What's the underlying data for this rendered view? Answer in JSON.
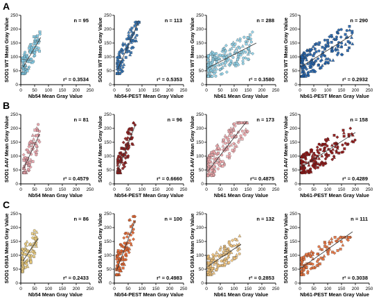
{
  "figure": {
    "rows": [
      {
        "letter": "A",
        "ylabel": "SOD1 WT Mean Gray Value",
        "panels": [
          {
            "xlabel": "Nb54 Mean Gray Value",
            "n_text": "n = 95",
            "r2_text": "r² = 0.3534"
          },
          {
            "xlabel": "Nb54-PEST Mean Gray Value",
            "n_text": "n = 113",
            "r2_text": "r² = 0.5353"
          },
          {
            "xlabel": "Nb61 Mean Gray Value",
            "n_text": "n = 288",
            "r2_text": "r² = 0.3580"
          },
          {
            "xlabel": "Nb61-PEST Mean Gray Value",
            "n_text": "n = 290",
            "r2_text": "r² = 0.2932"
          }
        ]
      },
      {
        "letter": "B",
        "ylabel": "SOD1 A4V Mean Gray Value",
        "panels": [
          {
            "xlabel": "Nb54 Mean Gray Value",
            "n_text": "n = 81",
            "r2_text": "r² = 0.4579"
          },
          {
            "xlabel": "Nb54-PEST Mean Gray Value",
            "n_text": "n = 96",
            "r2_text": "r² = 0.6660"
          },
          {
            "xlabel": "Nb61 Mean Gray Value",
            "n_text": "n = 173",
            "r2_text": "r²= 0.4875"
          },
          {
            "xlabel": "Nb61-PEST Mean Gray Value",
            "n_text": "n = 158",
            "r2_text": "r² = 0.4289"
          }
        ]
      },
      {
        "letter": "C",
        "ylabel": "SOD1 G93A Mean Gray Value",
        "panels": [
          {
            "xlabel": "Nb54 Mean Gray Value",
            "n_text": "n = 86",
            "r2_text": "r² = 0.2433"
          },
          {
            "xlabel": "Nb54-PEST Mean Gray Value",
            "n_text": "n = 100",
            "r2_text": "r² = 0.4983"
          },
          {
            "xlabel": "Nb61 Mean Gray Value",
            "n_text": "n = 132",
            "r2_text": "r² = 0.2853"
          },
          {
            "xlabel": "Nb61-PEST Mean Gray Value",
            "n_text": "n = 111",
            "r2_text": "r² = 0.3038"
          }
        ]
      }
    ]
  },
  "chart_data": [
    {
      "type": "scatter",
      "panel": "A1",
      "xlim": [
        0,
        250
      ],
      "ylim": [
        0,
        250
      ],
      "xticks": [
        0,
        50,
        100,
        150,
        200,
        250
      ],
      "yticks": [
        0,
        50,
        100,
        150,
        200,
        250
      ],
      "n": 95,
      "r2": 0.3534,
      "point_color": "#7ec8e3",
      "trend": {
        "x": [
          8,
          72
        ],
        "y": [
          62,
          170
        ]
      },
      "cluster": {
        "x_range": [
          5,
          70
        ],
        "y_range": [
          40,
          200
        ]
      }
    },
    {
      "type": "scatter",
      "panel": "A2",
      "xlim": [
        0,
        250
      ],
      "ylim": [
        0,
        250
      ],
      "xticks": [
        0,
        50,
        100,
        150,
        200,
        250
      ],
      "yticks": [
        0,
        50,
        100,
        150,
        200,
        250
      ],
      "n": 113,
      "r2": 0.5353,
      "point_color": "#2f6fb0",
      "trend": {
        "x": [
          12,
          85
        ],
        "y": [
          55,
          220
        ]
      },
      "cluster": {
        "x_range": [
          10,
          90
        ],
        "y_range": [
          40,
          225
        ]
      }
    },
    {
      "type": "scatter",
      "panel": "A3",
      "xlim": [
        0,
        250
      ],
      "ylim": [
        0,
        250
      ],
      "xticks": [
        0,
        50,
        100,
        150,
        200,
        250
      ],
      "yticks": [
        0,
        50,
        100,
        150,
        200,
        250
      ],
      "n": 288,
      "r2": 0.358,
      "point_color": "#8ccfe6",
      "trend": {
        "x": [
          5,
          180
        ],
        "y": [
          60,
          150
        ]
      },
      "cluster": {
        "x_range": [
          5,
          175
        ],
        "y_range": [
          30,
          215
        ]
      }
    },
    {
      "type": "scatter",
      "panel": "A4",
      "xlim": [
        0,
        250
      ],
      "ylim": [
        0,
        250
      ],
      "xticks": [
        0,
        50,
        100,
        150,
        200,
        250
      ],
      "yticks": [
        0,
        50,
        100,
        150,
        200,
        250
      ],
      "n": 290,
      "r2": 0.2932,
      "point_color": "#1f5fa8",
      "trend": {
        "x": [
          5,
          190
        ],
        "y": [
          65,
          180
        ]
      },
      "cluster": {
        "x_range": [
          5,
          190
        ],
        "y_range": [
          30,
          210
        ]
      }
    },
    {
      "type": "scatter",
      "panel": "B1",
      "xlim": [
        0,
        250
      ],
      "ylim": [
        0,
        250
      ],
      "xticks": [
        0,
        50,
        100,
        150,
        200,
        250
      ],
      "yticks": [
        0,
        50,
        100,
        150,
        200,
        250
      ],
      "n": 81,
      "r2": 0.4579,
      "point_color": "#e8a0a8",
      "trend": {
        "x": [
          10,
          68
        ],
        "y": [
          55,
          180
        ]
      },
      "cluster": {
        "x_range": [
          10,
          70
        ],
        "y_range": [
          40,
          225
        ]
      }
    },
    {
      "type": "scatter",
      "panel": "B2",
      "xlim": [
        0,
        250
      ],
      "ylim": [
        0,
        250
      ],
      "xticks": [
        0,
        50,
        100,
        150,
        200,
        250
      ],
      "yticks": [
        0,
        50,
        100,
        150,
        200,
        250
      ],
      "n": 96,
      "r2": 0.666,
      "point_color": "#8b1a1a",
      "trend": {
        "x": [
          12,
          75
        ],
        "y": [
          45,
          210
        ]
      },
      "cluster": {
        "x_range": [
          12,
          75
        ],
        "y_range": [
          40,
          220
        ]
      }
    },
    {
      "type": "scatter",
      "panel": "B3",
      "xlim": [
        0,
        250
      ],
      "ylim": [
        0,
        250
      ],
      "xticks": [
        0,
        50,
        100,
        150,
        200,
        250
      ],
      "yticks": [
        0,
        50,
        100,
        150,
        200,
        250
      ],
      "n": 173,
      "r2": 0.4875,
      "point_color": "#f0a8ac",
      "trend": {
        "x": [
          5,
          145
        ],
        "y": [
          45,
          225
        ]
      },
      "cluster": {
        "x_range": [
          5,
          150
        ],
        "y_range": [
          30,
          220
        ]
      }
    },
    {
      "type": "scatter",
      "panel": "B4",
      "xlim": [
        0,
        250
      ],
      "ylim": [
        0,
        250
      ],
      "xticks": [
        0,
        50,
        100,
        150,
        200,
        250
      ],
      "yticks": [
        0,
        50,
        100,
        150,
        200,
        250
      ],
      "n": 158,
      "r2": 0.4289,
      "point_color": "#8b0f0f",
      "trend": {
        "x": [
          5,
          200
        ],
        "y": [
          60,
          185
        ]
      },
      "cluster": {
        "x_range": [
          5,
          200
        ],
        "y_range": [
          40,
          200
        ]
      }
    },
    {
      "type": "scatter",
      "panel": "C1",
      "xlim": [
        0,
        250
      ],
      "ylim": [
        0,
        250
      ],
      "xticks": [
        0,
        50,
        100,
        150,
        200,
        250
      ],
      "yticks": [
        0,
        50,
        100,
        150,
        200,
        250
      ],
      "n": 86,
      "r2": 0.2433,
      "point_color": "#e8c97a",
      "trend": {
        "x": [
          8,
          62
        ],
        "y": [
          80,
          160
        ]
      },
      "cluster": {
        "x_range": [
          5,
          60
        ],
        "y_range": [
          40,
          215
        ]
      }
    },
    {
      "type": "scatter",
      "panel": "C2",
      "xlim": [
        0,
        250
      ],
      "ylim": [
        0,
        250
      ],
      "xticks": [
        0,
        50,
        100,
        150,
        200,
        250
      ],
      "yticks": [
        0,
        50,
        100,
        150,
        200,
        250
      ],
      "n": 100,
      "r2": 0.4983,
      "point_color": "#e0622c",
      "trend": {
        "x": [
          8,
          75
        ],
        "y": [
          45,
          225
        ]
      },
      "cluster": {
        "x_range": [
          8,
          75
        ],
        "y_range": [
          30,
          240
        ]
      }
    },
    {
      "type": "scatter",
      "panel": "C3",
      "xlim": [
        0,
        250
      ],
      "ylim": [
        0,
        250
      ],
      "xticks": [
        0,
        50,
        100,
        150,
        200,
        250
      ],
      "yticks": [
        0,
        50,
        100,
        150,
        200,
        250
      ],
      "n": 132,
      "r2": 0.2853,
      "point_color": "#f0c27a",
      "trend": {
        "x": [
          5,
          125
        ],
        "y": [
          60,
          140
        ]
      },
      "cluster": {
        "x_range": [
          5,
          120
        ],
        "y_range": [
          30,
          170
        ]
      }
    },
    {
      "type": "scatter",
      "panel": "C4",
      "xlim": [
        0,
        250
      ],
      "ylim": [
        0,
        250
      ],
      "xticks": [
        0,
        50,
        100,
        150,
        200,
        250
      ],
      "yticks": [
        0,
        50,
        100,
        150,
        200,
        250
      ],
      "n": 111,
      "r2": 0.3038,
      "point_color": "#e6703a",
      "trend": {
        "x": [
          5,
          190
        ],
        "y": [
          55,
          185
        ]
      },
      "cluster": {
        "x_range": [
          5,
          190
        ],
        "y_range": [
          30,
          165
        ]
      }
    }
  ]
}
